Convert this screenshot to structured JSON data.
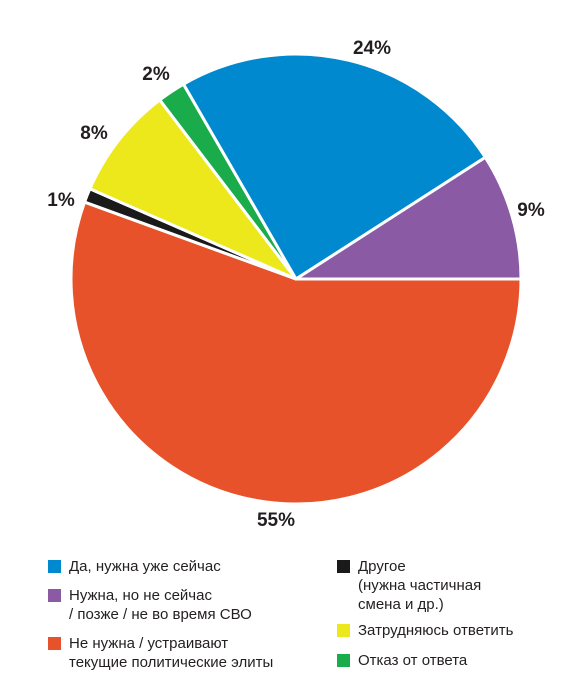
{
  "chart_data": {
    "type": "pie",
    "categories": [
      "Да, нужна уже сейчас",
      "Нужна, но не сейчас\n/ позже / не во время СВО",
      "Не нужна / устраивают\nтекущие политические элиты",
      "Другое\n(нужна частичная\nсмена и др.)",
      "Затрудняюсь ответить",
      "Отказ от ответа"
    ],
    "values": [
      24,
      9,
      55,
      1,
      8,
      2
    ],
    "labels": [
      "24%",
      "9%",
      "55%",
      "1%",
      "8%",
      "2%"
    ],
    "colors": [
      "#0089cf",
      "#8a5aa5",
      "#e8522a",
      "#1a1a1a",
      "#ece81b",
      "#1aab4b"
    ],
    "legend_position": "bottom"
  }
}
